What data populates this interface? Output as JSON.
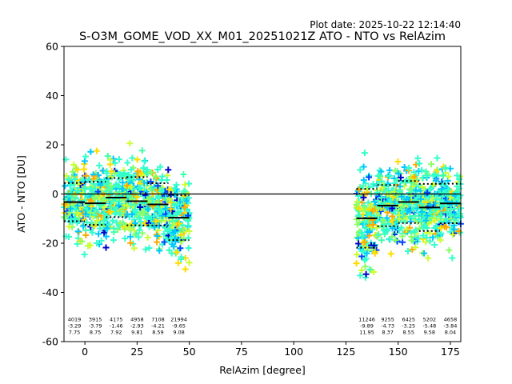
{
  "figure": {
    "plot_date": "Plot date: 2025-10-22 12:14:40",
    "title": "S-O3M_GOME_VOD_XX_M01_20251021Z ATO - NTO vs RelAzim"
  },
  "chart_data": {
    "type": "scatter",
    "title": "S-O3M_GOME_VOD_XX_M01_20251021Z ATO - NTO vs RelAzim",
    "xlabel": "RelAzim [degree]",
    "ylabel": "ATO - NTO [DU]",
    "xlim": [
      -10,
      180
    ],
    "ylim": [
      -60,
      60
    ],
    "xticks": [
      0,
      25,
      50,
      75,
      100,
      125,
      150,
      175
    ],
    "yticks": [
      -60,
      -40,
      -20,
      0,
      20,
      40,
      60
    ],
    "marker": "+",
    "zero_line": 0,
    "grid": false,
    "bins": [
      {
        "x_range": [
          -10,
          0
        ],
        "count": "4019",
        "mean": "-3.29",
        "std": "7.75"
      },
      {
        "x_range": [
          0,
          10
        ],
        "count": "3915",
        "mean": "-3.79",
        "std": "8.75"
      },
      {
        "x_range": [
          10,
          20
        ],
        "count": "4175",
        "mean": "-1.46",
        "std": "7.92"
      },
      {
        "x_range": [
          20,
          30
        ],
        "count": "4958",
        "mean": "-2.93",
        "std": "9.81"
      },
      {
        "x_range": [
          30,
          40
        ],
        "count": "7108",
        "mean": "-4.21",
        "std": "8.59"
      },
      {
        "x_range": [
          40,
          50
        ],
        "count": "21994",
        "mean": "-9.65",
        "std": "9.08"
      },
      {
        "x_range": [
          130,
          140
        ],
        "count": "11246",
        "mean": "-9.89",
        "std": "11.95"
      },
      {
        "x_range": [
          140,
          150
        ],
        "count": "9255",
        "mean": "-4.73",
        "std": "8.37"
      },
      {
        "x_range": [
          150,
          160
        ],
        "count": "6425",
        "mean": "-3.25",
        "std": "8.55"
      },
      {
        "x_range": [
          160,
          170
        ],
        "count": "5202",
        "mean": "-5.48",
        "std": "9.58"
      },
      {
        "x_range": [
          170,
          180
        ],
        "count": "4658",
        "mean": "-3.84",
        "std": "8.04"
      }
    ],
    "point_colors": [
      "#33ffcc",
      "#00c8ff",
      "#88ff66",
      "#ccff33",
      "#ffdd00",
      "#ffaa00",
      "#0044ff",
      "#0000cc",
      "#44ffaa"
    ]
  }
}
